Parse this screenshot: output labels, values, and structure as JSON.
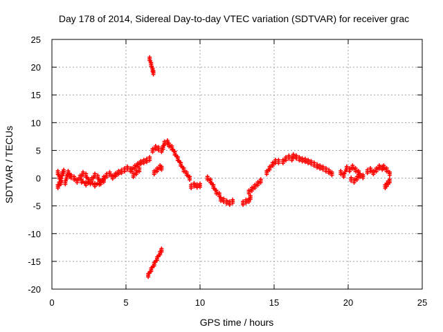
{
  "chart_data": {
    "type": "scatter",
    "title": "Day 178 of 2014, Sidereal Day-to-day VTEC variation (SDTVAR) for receiver grac",
    "xlabel": "GPS time / hours",
    "ylabel": "SDTVAR / TECUs",
    "xlim": [
      0,
      25
    ],
    "ylim": [
      -20,
      25
    ],
    "xticks": [
      0,
      5,
      10,
      15,
      20,
      25
    ],
    "yticks": [
      -20,
      -15,
      -10,
      -5,
      0,
      5,
      10,
      15,
      20,
      25
    ],
    "x_tick_labels": [
      "0",
      "5",
      "10",
      "15",
      "20",
      "25"
    ],
    "y_tick_labels": [
      "-20",
      "-15",
      "-10",
      "-5",
      "0",
      "5",
      "10",
      "15",
      "20",
      "25"
    ],
    "grid": true,
    "marker_color": "#ff0000",
    "series": [
      {
        "name": "SDTVAR",
        "segments": [
          [
            [
              0.4,
              1.0
            ],
            [
              0.5,
              0.2
            ],
            [
              0.6,
              -0.4
            ],
            [
              0.7,
              0.8
            ],
            [
              0.8,
              1.2
            ]
          ],
          [
            [
              0.4,
              -1.5
            ],
            [
              0.5,
              -1.0
            ],
            [
              0.6,
              -0.8
            ]
          ],
          [
            [
              0.9,
              -0.8
            ],
            [
              1.0,
              0.2
            ],
            [
              1.1,
              1.0
            ],
            [
              1.2,
              0.5
            ]
          ],
          [
            [
              1.3,
              0.3
            ],
            [
              1.5,
              0.0
            ],
            [
              1.7,
              -0.5
            ],
            [
              1.9,
              0.2
            ],
            [
              2.1,
              0.8
            ],
            [
              2.3,
              0.5
            ],
            [
              2.5,
              -0.5
            ],
            [
              2.7,
              -0.2
            ],
            [
              2.9,
              0.5
            ],
            [
              3.1,
              0.2
            ],
            [
              3.3,
              -0.8
            ],
            [
              3.5,
              0.0
            ],
            [
              3.7,
              0.5
            ],
            [
              3.9,
              0.8
            ],
            [
              4.1,
              0.2
            ],
            [
              4.3,
              0.6
            ],
            [
              4.5,
              1.0
            ],
            [
              4.7,
              1.2
            ],
            [
              4.9,
              1.5
            ],
            [
              5.1,
              1.8
            ],
            [
              5.3,
              1.5
            ]
          ],
          [
            [
              2.0,
              -0.5
            ],
            [
              2.3,
              -1.0
            ],
            [
              2.6,
              -0.8
            ],
            [
              2.9,
              -1.2
            ],
            [
              3.2,
              -0.9
            ],
            [
              3.5,
              -0.4
            ]
          ],
          [
            [
              5.4,
              1.5
            ],
            [
              5.6,
              2.0
            ],
            [
              5.8,
              2.4
            ],
            [
              6.0,
              2.8
            ],
            [
              6.2,
              3.0
            ],
            [
              6.4,
              3.2
            ],
            [
              6.6,
              3.5
            ]
          ],
          [
            [
              5.5,
              0.5
            ],
            [
              5.7,
              1.0
            ],
            [
              5.9,
              1.5
            ]
          ],
          [
            [
              6.6,
              21.5
            ],
            [
              6.7,
              20.5
            ],
            [
              6.8,
              19.5
            ],
            [
              6.85,
              19.0
            ]
          ],
          [
            [
              6.8,
              5.0
            ],
            [
              7.0,
              5.5
            ],
            [
              7.2,
              5.3
            ],
            [
              7.4,
              5.0
            ]
          ],
          [
            [
              6.9,
              1.0
            ],
            [
              7.1,
              1.5
            ],
            [
              7.3,
              2.0
            ],
            [
              7.4,
              1.8
            ]
          ],
          [
            [
              6.5,
              -17.5
            ],
            [
              6.7,
              -16.5
            ],
            [
              6.9,
              -15.5
            ],
            [
              7.1,
              -14.5
            ],
            [
              7.3,
              -13.5
            ],
            [
              7.4,
              -13.0
            ]
          ],
          [
            [
              7.5,
              5.5
            ],
            [
              7.6,
              6.3
            ],
            [
              7.8,
              6.5
            ],
            [
              7.9,
              6.0
            ],
            [
              8.1,
              5.5
            ],
            [
              8.3,
              4.5
            ],
            [
              8.5,
              3.5
            ],
            [
              8.7,
              2.5
            ],
            [
              8.9,
              1.5
            ],
            [
              9.1,
              0.8
            ],
            [
              9.3,
              0.0
            ]
          ],
          [
            [
              9.4,
              -1.5
            ],
            [
              9.6,
              -1.2
            ],
            [
              9.8,
              -1.4
            ],
            [
              10.0,
              -1.3
            ]
          ],
          [
            [
              10.5,
              0.0
            ],
            [
              10.7,
              -0.5
            ],
            [
              10.9,
              -1.5
            ],
            [
              11.1,
              -2.5
            ],
            [
              11.3,
              -3.0
            ]
          ],
          [
            [
              11.4,
              -3.8
            ],
            [
              11.6,
              -4.0
            ],
            [
              11.8,
              -4.3
            ],
            [
              12.0,
              -4.5
            ],
            [
              12.2,
              -4.2
            ]
          ],
          [
            [
              12.9,
              -4.5
            ],
            [
              13.1,
              -4.2
            ],
            [
              13.3,
              -4.0
            ],
            [
              13.4,
              -3.5
            ]
          ],
          [
            [
              13.3,
              -2.5
            ],
            [
              13.5,
              -2.0
            ],
            [
              13.7,
              -1.5
            ],
            [
              13.9,
              -1.0
            ],
            [
              14.1,
              -0.5
            ]
          ],
          [
            [
              14.5,
              1.0
            ],
            [
              14.7,
              1.8
            ],
            [
              14.9,
              2.5
            ],
            [
              15.1,
              3.0
            ],
            [
              15.3,
              3.0
            ]
          ],
          [
            [
              15.6,
              3.0
            ],
            [
              15.8,
              3.5
            ],
            [
              16.0,
              3.8
            ],
            [
              16.2,
              3.5
            ]
          ],
          [
            [
              16.3,
              4.0
            ],
            [
              16.5,
              3.8
            ],
            [
              16.7,
              3.5
            ],
            [
              16.9,
              3.3
            ],
            [
              17.1,
              3.2
            ],
            [
              17.3,
              3.0
            ],
            [
              17.5,
              2.8
            ],
            [
              17.7,
              2.5
            ],
            [
              17.9,
              2.2
            ],
            [
              18.1,
              2.0
            ],
            [
              18.3,
              1.8
            ],
            [
              18.5,
              1.5
            ],
            [
              18.7,
              1.2
            ],
            [
              18.9,
              0.8
            ]
          ],
          [
            [
              19.5,
              1.0
            ],
            [
              19.7,
              0.5
            ],
            [
              19.9,
              1.8
            ],
            [
              20.1,
              1.5
            ],
            [
              20.3,
              2.0
            ],
            [
              20.5,
              1.5
            ],
            [
              20.7,
              1.0
            ]
          ],
          [
            [
              20.2,
              -0.2
            ],
            [
              20.4,
              -0.5
            ],
            [
              20.6,
              0.0
            ],
            [
              20.8,
              0.5
            ],
            [
              21.0,
              0.3
            ]
          ],
          [
            [
              21.3,
              1.2
            ],
            [
              21.5,
              1.5
            ],
            [
              21.7,
              1.0
            ],
            [
              21.9,
              1.5
            ],
            [
              22.1,
              2.0
            ],
            [
              22.3,
              1.8
            ]
          ],
          [
            [
              22.4,
              2.0
            ],
            [
              22.6,
              1.5
            ],
            [
              22.8,
              0.8
            ]
          ],
          [
            [
              22.5,
              -1.5
            ],
            [
              22.6,
              -1.2
            ],
            [
              22.7,
              -0.8
            ],
            [
              22.8,
              -0.5
            ]
          ]
        ]
      }
    ]
  }
}
